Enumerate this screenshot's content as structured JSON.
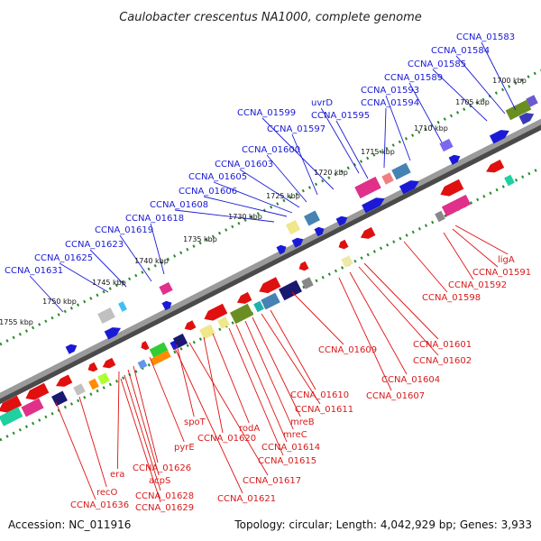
{
  "title": "Caulobacter crescentus NA1000, complete genome",
  "footer": {
    "accession": "Accession: NC_011916",
    "summary": "Topology: circular; Length: 4,042,929 bp; Genes: 3,933"
  },
  "colors": {
    "forward": "#1a1ad6",
    "reverse": "#e01010",
    "backbone": "#777777",
    "tick": "#2a8a2a"
  },
  "kbp_marks": [
    "1700 kbp",
    "1705 kbp",
    "1710 kbp",
    "1715 kbp",
    "1720 kbp",
    "1725 kbp",
    "1730 kbp",
    "1735 kbp",
    "1740 kbp",
    "1745 kbp",
    "1750 kbp",
    "1755 kbp"
  ],
  "forward_labels": [
    "CCNA_01583",
    "CCNA_01584",
    "CCNA_01585",
    "CCNA_01589",
    "CCNA_01593",
    "CCNA_01594",
    "uvrD",
    "CCNA_01595",
    "CCNA_01599",
    "CCNA_01597",
    "CCNA_01600",
    "CCNA_01603",
    "CCNA_01605",
    "CCNA_01606",
    "CCNA_01608",
    "CCNA_01618",
    "CCNA_01619",
    "CCNA_01623",
    "CCNA_01625",
    "CCNA_01631"
  ],
  "reverse_labels": [
    "ligA",
    "CCNA_01591",
    "CCNA_01592",
    "CCNA_01598",
    "CCNA_01601",
    "CCNA_01602",
    "CCNA_01609",
    "CCNA_01604",
    "CCNA_01607",
    "CCNA_01610",
    "CCNA_01611",
    "mreB",
    "mreC",
    "CCNA_01614",
    "CCNA_01615",
    "rodA",
    "CCNA_01620",
    "spoT",
    "CCNA_01617",
    "pyrE",
    "CCNA_01621",
    "CCNA_01626",
    "era",
    "acpS",
    "recO",
    "CCNA_01628",
    "CCNA_01629",
    "CCNA_01636"
  ]
}
